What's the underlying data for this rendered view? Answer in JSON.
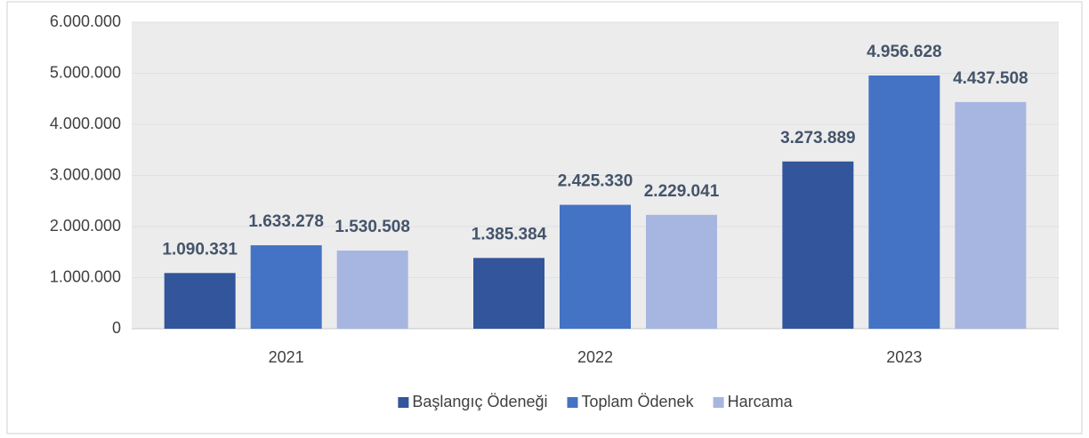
{
  "chart_data": {
    "type": "bar",
    "categories": [
      "2021",
      "2022",
      "2023"
    ],
    "series": [
      {
        "name": "Başlangıç Ödeneği",
        "color": "#32559c",
        "values": [
          1090331,
          1385384,
          3273889
        ],
        "value_labels": [
          "1.090.331",
          "1.385.384",
          "3.273.889"
        ]
      },
      {
        "name": "Toplam Ödenek",
        "color": "#4472c4",
        "values": [
          1633278,
          2425330,
          4956628
        ],
        "value_labels": [
          "1.633.278",
          "2.425.330",
          "4.956.628"
        ]
      },
      {
        "name": "Harcama",
        "color": "#a7b6e0",
        "values": [
          1530508,
          2229041,
          4437508
        ],
        "value_labels": [
          "1.530.508",
          "2.229.041",
          "4.437.508"
        ]
      }
    ],
    "ylim": [
      0,
      6000000
    ],
    "yticks": [
      0,
      {
        "value": 1000000,
        "label": "1.000.000"
      },
      {
        "value": 2000000,
        "label": "2.000.000"
      },
      {
        "value": 3000000,
        "label": "3.000.000"
      },
      {
        "value": 4000000,
        "label": "4.000.000"
      },
      {
        "value": 5000000,
        "label": "5.000.000"
      },
      {
        "value": 6000000,
        "label": "6.000.000"
      }
    ],
    "grid": true,
    "legend": "bottom"
  }
}
